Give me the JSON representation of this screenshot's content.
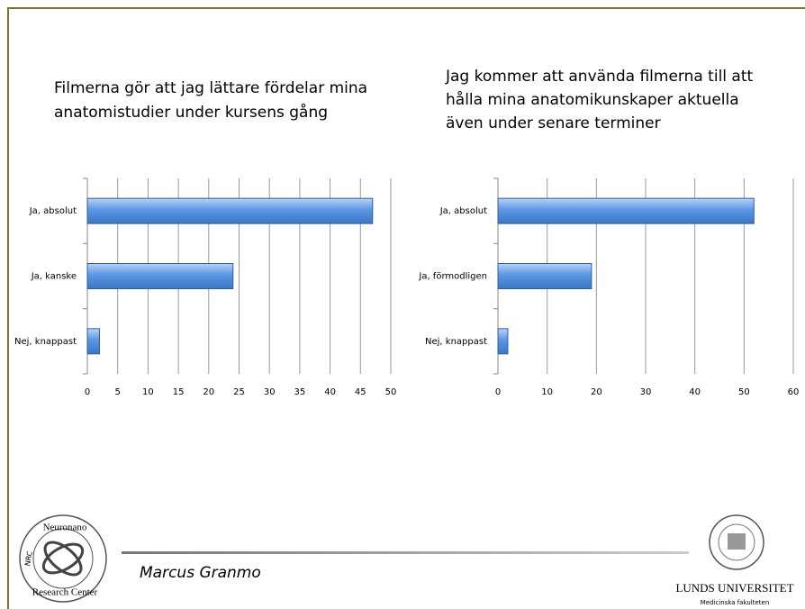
{
  "chart_data": [
    {
      "type": "bar",
      "orientation": "horizontal",
      "title": [
        "Filmerna gör att jag lättare fördelar mina",
        "anatomistudier under kursens gång"
      ],
      "categories": [
        "Ja, absolut",
        "Ja, kanske",
        "Nej, knappast"
      ],
      "values": [
        47,
        24,
        2
      ],
      "color": "#4f8fe0",
      "xlim": [
        0,
        50
      ],
      "xticks": [
        0,
        5,
        10,
        15,
        20,
        25,
        30,
        35,
        40,
        45,
        50
      ],
      "grid": true
    },
    {
      "type": "bar",
      "orientation": "horizontal",
      "title": [
        "Jag kommer att använda filmerna till att",
        "hålla mina anatomikunskaper aktuella",
        "även under senare terminer"
      ],
      "categories": [
        "Ja, absolut",
        "Ja, förmodligen",
        "Nej, knappast"
      ],
      "values": [
        52,
        19,
        2
      ],
      "color": "#4f8fe0",
      "xlim": [
        0,
        60
      ],
      "xticks": [
        0,
        10,
        20,
        30,
        40,
        50,
        60
      ],
      "grid": true
    }
  ],
  "footer": {
    "author": "Marcus Granmo",
    "university": "LUNDS UNIVERSITET",
    "faculty": "Medicinska fakulteten",
    "logo_top": "Neuronano",
    "logo_bottom": "Research Center",
    "logo_side": "NRC"
  }
}
